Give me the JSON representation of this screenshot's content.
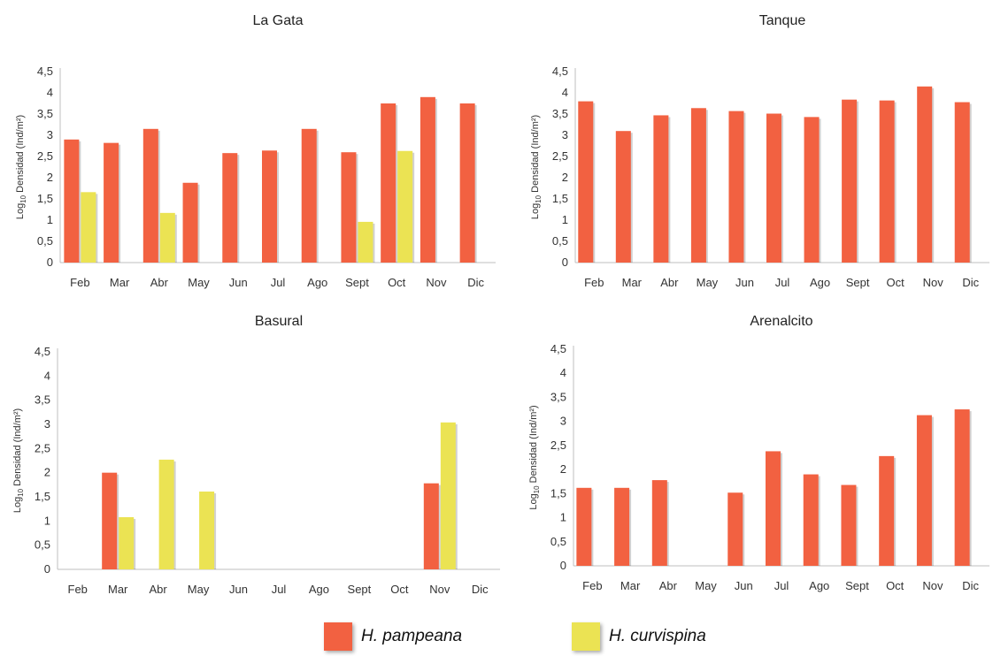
{
  "colors": {
    "pampeana": "#f26141",
    "curvispina": "#ebe353",
    "axis": "#bfbfbf",
    "text": "#333333"
  },
  "legend": {
    "pampeana_label": "H. pampeana",
    "curvispina_label": "H. curvispina"
  },
  "chart_data": [
    {
      "type": "bar",
      "title": "La Gata",
      "ylabel": "Log10 Densidad (Ind/m²)",
      "ylim": [
        0,
        4.5
      ],
      "yticks": [
        "0",
        "0,5",
        "1",
        "1,5",
        "2",
        "2,5",
        "3",
        "3,5",
        "4",
        "4,5"
      ],
      "categories": [
        "Feb",
        "Mar",
        "Abr",
        "May",
        "Jun",
        "Jul",
        "Ago",
        "Sept",
        "Oct",
        "Nov",
        "Dic"
      ],
      "series": [
        {
          "name": "H. pampeana",
          "values": [
            2.9,
            2.82,
            3.15,
            1.88,
            2.58,
            2.64,
            3.15,
            2.6,
            3.75,
            3.9,
            3.75
          ]
        },
        {
          "name": "H. curvispina",
          "values": [
            1.66,
            null,
            1.17,
            null,
            null,
            null,
            null,
            0.96,
            2.63,
            null,
            null
          ]
        }
      ]
    },
    {
      "type": "bar",
      "title": "Tanque",
      "ylabel": "Log10 Densidad (Ind/m²)",
      "ylim": [
        0,
        4.5
      ],
      "yticks": [
        "0",
        "0,5",
        "1",
        "1,5",
        "2",
        "2,5",
        "3",
        "3,5",
        "4",
        "4,5"
      ],
      "categories": [
        "Feb",
        "Mar",
        "Abr",
        "May",
        "Jun",
        "Jul",
        "Ago",
        "Sept",
        "Oct",
        "Nov",
        "Dic"
      ],
      "series": [
        {
          "name": "H. pampeana",
          "values": [
            3.8,
            3.1,
            3.47,
            3.64,
            3.57,
            3.51,
            3.43,
            3.84,
            3.82,
            4.15,
            3.78
          ]
        },
        {
          "name": "H. curvispina",
          "values": [
            null,
            null,
            null,
            null,
            null,
            null,
            null,
            null,
            null,
            null,
            null
          ]
        }
      ]
    },
    {
      "type": "bar",
      "title": "Basural",
      "ylabel": "Log10 Densidad (Ind/m²)",
      "ylim": [
        0,
        4.5
      ],
      "yticks": [
        "0",
        "0,5",
        "1",
        "1,5",
        "2",
        "2,5",
        "3",
        "3,5",
        "4",
        "4,5"
      ],
      "categories": [
        "Feb",
        "Mar",
        "Abr",
        "May",
        "Jun",
        "Jul",
        "Ago",
        "Sept",
        "Oct",
        "Nov",
        "Dic"
      ],
      "series": [
        {
          "name": "H. pampeana",
          "values": [
            null,
            2.0,
            null,
            null,
            null,
            null,
            null,
            null,
            null,
            1.78,
            null
          ]
        },
        {
          "name": "H. curvispina",
          "values": [
            null,
            1.08,
            2.27,
            1.61,
            null,
            null,
            null,
            null,
            null,
            3.04,
            null
          ]
        }
      ]
    },
    {
      "type": "bar",
      "title": "Arenalcito",
      "ylabel": "Log10 Densidad (Ind/m²)",
      "ylim": [
        0,
        4.5
      ],
      "yticks": [
        "0",
        "0,5",
        "1",
        "1,5",
        "2",
        "2,5",
        "3",
        "3,5",
        "4",
        "4,5"
      ],
      "categories": [
        "Feb",
        "Mar",
        "Abr",
        "May",
        "Jun",
        "Jul",
        "Ago",
        "Sept",
        "Oct",
        "Nov",
        "Dic"
      ],
      "series": [
        {
          "name": "H. pampeana",
          "values": [
            1.62,
            1.62,
            1.78,
            null,
            1.52,
            2.38,
            1.9,
            1.68,
            2.28,
            3.13,
            3.25
          ]
        },
        {
          "name": "H. curvispina",
          "values": [
            null,
            null,
            null,
            null,
            null,
            null,
            null,
            null,
            null,
            null,
            null
          ]
        }
      ]
    }
  ]
}
